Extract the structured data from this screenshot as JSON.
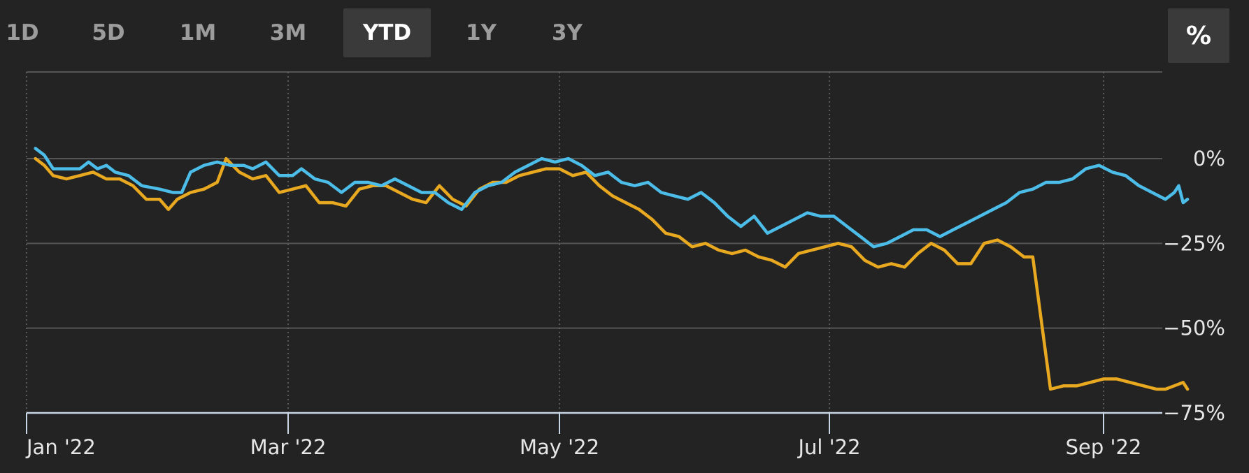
{
  "range_buttons": [
    {
      "label": "1D",
      "active": false
    },
    {
      "label": "5D",
      "active": false
    },
    {
      "label": "1M",
      "active": false
    },
    {
      "label": "3M",
      "active": false
    },
    {
      "label": "YTD",
      "active": true
    },
    {
      "label": "1Y",
      "active": false
    },
    {
      "label": "3Y",
      "active": false
    }
  ],
  "percent_toggle": {
    "label": "%"
  },
  "colors": {
    "series_a": "#4cbde8",
    "series_b": "#e8a820",
    "grid": "#555555",
    "axis": "#c8d6e6"
  },
  "chart_data": {
    "type": "line",
    "x_ticks": [
      "Jan '22",
      "Mar '22",
      "May '22",
      "Jul '22",
      "Sep '22"
    ],
    "y_ticks": [
      "0%",
      "−25%",
      "−50%",
      "−75%"
    ],
    "y_tick_values": [
      0,
      -25,
      -50,
      -75
    ],
    "ylim": [
      -75,
      25
    ],
    "xlim": [
      "2022-01-01",
      "2022-09-20"
    ],
    "grid": true,
    "series": [
      {
        "color": "#4cbde8",
        "points": [
          [
            "2022-01-03",
            3
          ],
          [
            "2022-01-05",
            1
          ],
          [
            "2022-01-07",
            -3
          ],
          [
            "2022-01-10",
            -3
          ],
          [
            "2022-01-13",
            -3
          ],
          [
            "2022-01-15",
            -1
          ],
          [
            "2022-01-17",
            -3
          ],
          [
            "2022-01-19",
            -2
          ],
          [
            "2022-01-21",
            -4
          ],
          [
            "2022-01-24",
            -5
          ],
          [
            "2022-01-27",
            -8
          ],
          [
            "2022-01-31",
            -9
          ],
          [
            "2022-02-03",
            -10
          ],
          [
            "2022-02-05",
            -10
          ],
          [
            "2022-02-07",
            -4
          ],
          [
            "2022-02-10",
            -2
          ],
          [
            "2022-02-13",
            -1
          ],
          [
            "2022-02-16",
            -2
          ],
          [
            "2022-02-19",
            -2
          ],
          [
            "2022-02-21",
            -3
          ],
          [
            "2022-02-24",
            -1
          ],
          [
            "2022-02-27",
            -5
          ],
          [
            "2022-03-02",
            -5
          ],
          [
            "2022-03-04",
            -3
          ],
          [
            "2022-03-07",
            -6
          ],
          [
            "2022-03-10",
            -7
          ],
          [
            "2022-03-13",
            -10
          ],
          [
            "2022-03-16",
            -7
          ],
          [
            "2022-03-19",
            -7
          ],
          [
            "2022-03-22",
            -8
          ],
          [
            "2022-03-25",
            -6
          ],
          [
            "2022-03-28",
            -8
          ],
          [
            "2022-03-31",
            -10
          ],
          [
            "2022-04-03",
            -10
          ],
          [
            "2022-04-06",
            -13
          ],
          [
            "2022-04-09",
            -15
          ],
          [
            "2022-04-12",
            -10
          ],
          [
            "2022-04-15",
            -8
          ],
          [
            "2022-04-18",
            -7
          ],
          [
            "2022-04-21",
            -4
          ],
          [
            "2022-04-24",
            -2
          ],
          [
            "2022-04-27",
            0
          ],
          [
            "2022-04-30",
            -1
          ],
          [
            "2022-05-03",
            0
          ],
          [
            "2022-05-06",
            -2
          ],
          [
            "2022-05-09",
            -5
          ],
          [
            "2022-05-12",
            -4
          ],
          [
            "2022-05-15",
            -7
          ],
          [
            "2022-05-18",
            -8
          ],
          [
            "2022-05-21",
            -7
          ],
          [
            "2022-05-24",
            -10
          ],
          [
            "2022-05-27",
            -11
          ],
          [
            "2022-05-30",
            -12
          ],
          [
            "2022-06-02",
            -10
          ],
          [
            "2022-06-05",
            -13
          ],
          [
            "2022-06-08",
            -17
          ],
          [
            "2022-06-11",
            -20
          ],
          [
            "2022-06-14",
            -17
          ],
          [
            "2022-06-17",
            -22
          ],
          [
            "2022-06-20",
            -20
          ],
          [
            "2022-06-23",
            -18
          ],
          [
            "2022-06-26",
            -16
          ],
          [
            "2022-06-29",
            -17
          ],
          [
            "2022-07-02",
            -17
          ],
          [
            "2022-07-05",
            -20
          ],
          [
            "2022-07-08",
            -23
          ],
          [
            "2022-07-11",
            -26
          ],
          [
            "2022-07-14",
            -25
          ],
          [
            "2022-07-17",
            -23
          ],
          [
            "2022-07-20",
            -21
          ],
          [
            "2022-07-23",
            -21
          ],
          [
            "2022-07-26",
            -23
          ],
          [
            "2022-07-29",
            -21
          ],
          [
            "2022-08-01",
            -19
          ],
          [
            "2022-08-04",
            -17
          ],
          [
            "2022-08-07",
            -15
          ],
          [
            "2022-08-10",
            -13
          ],
          [
            "2022-08-13",
            -10
          ],
          [
            "2022-08-16",
            -9
          ],
          [
            "2022-08-19",
            -7
          ],
          [
            "2022-08-22",
            -7
          ],
          [
            "2022-08-25",
            -6
          ],
          [
            "2022-08-28",
            -3
          ],
          [
            "2022-08-31",
            -2
          ],
          [
            "2022-09-03",
            -4
          ],
          [
            "2022-09-06",
            -5
          ],
          [
            "2022-09-09",
            -8
          ],
          [
            "2022-09-12",
            -10
          ],
          [
            "2022-09-15",
            -12
          ],
          [
            "2022-09-17",
            -10
          ],
          [
            "2022-09-18",
            -8
          ],
          [
            "2022-09-19",
            -13
          ],
          [
            "2022-09-20",
            -12
          ]
        ]
      },
      {
        "color": "#e8a820",
        "points": [
          [
            "2022-01-03",
            0
          ],
          [
            "2022-01-05",
            -2
          ],
          [
            "2022-01-07",
            -5
          ],
          [
            "2022-01-10",
            -6
          ],
          [
            "2022-01-13",
            -5
          ],
          [
            "2022-01-16",
            -4
          ],
          [
            "2022-01-19",
            -6
          ],
          [
            "2022-01-22",
            -6
          ],
          [
            "2022-01-25",
            -8
          ],
          [
            "2022-01-28",
            -12
          ],
          [
            "2022-01-31",
            -12
          ],
          [
            "2022-02-02",
            -15
          ],
          [
            "2022-02-04",
            -12
          ],
          [
            "2022-02-07",
            -10
          ],
          [
            "2022-02-10",
            -9
          ],
          [
            "2022-02-13",
            -7
          ],
          [
            "2022-02-15",
            0
          ],
          [
            "2022-02-18",
            -4
          ],
          [
            "2022-02-21",
            -6
          ],
          [
            "2022-02-24",
            -5
          ],
          [
            "2022-02-27",
            -10
          ],
          [
            "2022-03-02",
            -9
          ],
          [
            "2022-03-05",
            -8
          ],
          [
            "2022-03-08",
            -13
          ],
          [
            "2022-03-11",
            -13
          ],
          [
            "2022-03-14",
            -14
          ],
          [
            "2022-03-17",
            -9
          ],
          [
            "2022-03-20",
            -8
          ],
          [
            "2022-03-23",
            -8
          ],
          [
            "2022-03-26",
            -10
          ],
          [
            "2022-03-29",
            -12
          ],
          [
            "2022-04-01",
            -13
          ],
          [
            "2022-04-04",
            -8
          ],
          [
            "2022-04-07",
            -12
          ],
          [
            "2022-04-10",
            -14
          ],
          [
            "2022-04-13",
            -9
          ],
          [
            "2022-04-16",
            -7
          ],
          [
            "2022-04-19",
            -7
          ],
          [
            "2022-04-22",
            -5
          ],
          [
            "2022-04-25",
            -4
          ],
          [
            "2022-04-28",
            -3
          ],
          [
            "2022-05-01",
            -3
          ],
          [
            "2022-05-04",
            -5
          ],
          [
            "2022-05-07",
            -4
          ],
          [
            "2022-05-10",
            -8
          ],
          [
            "2022-05-13",
            -11
          ],
          [
            "2022-05-16",
            -13
          ],
          [
            "2022-05-19",
            -15
          ],
          [
            "2022-05-22",
            -18
          ],
          [
            "2022-05-25",
            -22
          ],
          [
            "2022-05-28",
            -23
          ],
          [
            "2022-05-31",
            -26
          ],
          [
            "2022-06-03",
            -25
          ],
          [
            "2022-06-06",
            -27
          ],
          [
            "2022-06-09",
            -28
          ],
          [
            "2022-06-12",
            -27
          ],
          [
            "2022-06-15",
            -29
          ],
          [
            "2022-06-18",
            -30
          ],
          [
            "2022-06-21",
            -32
          ],
          [
            "2022-06-24",
            -28
          ],
          [
            "2022-06-27",
            -27
          ],
          [
            "2022-06-30",
            -26
          ],
          [
            "2022-07-03",
            -25
          ],
          [
            "2022-07-06",
            -26
          ],
          [
            "2022-07-09",
            -30
          ],
          [
            "2022-07-12",
            -32
          ],
          [
            "2022-07-15",
            -31
          ],
          [
            "2022-07-18",
            -32
          ],
          [
            "2022-07-21",
            -28
          ],
          [
            "2022-07-24",
            -25
          ],
          [
            "2022-07-27",
            -27
          ],
          [
            "2022-07-30",
            -31
          ],
          [
            "2022-08-02",
            -31
          ],
          [
            "2022-08-05",
            -25
          ],
          [
            "2022-08-08",
            -24
          ],
          [
            "2022-08-11",
            -26
          ],
          [
            "2022-08-14",
            -29
          ],
          [
            "2022-08-16",
            -29
          ],
          [
            "2022-08-20",
            -68
          ],
          [
            "2022-08-23",
            -67
          ],
          [
            "2022-08-26",
            -67
          ],
          [
            "2022-08-29",
            -66
          ],
          [
            "2022-09-01",
            -65
          ],
          [
            "2022-09-04",
            -65
          ],
          [
            "2022-09-07",
            -66
          ],
          [
            "2022-09-10",
            -67
          ],
          [
            "2022-09-13",
            -68
          ],
          [
            "2022-09-15",
            -68
          ],
          [
            "2022-09-17",
            -67
          ],
          [
            "2022-09-19",
            -66
          ],
          [
            "2022-09-20",
            -68
          ]
        ]
      }
    ]
  }
}
